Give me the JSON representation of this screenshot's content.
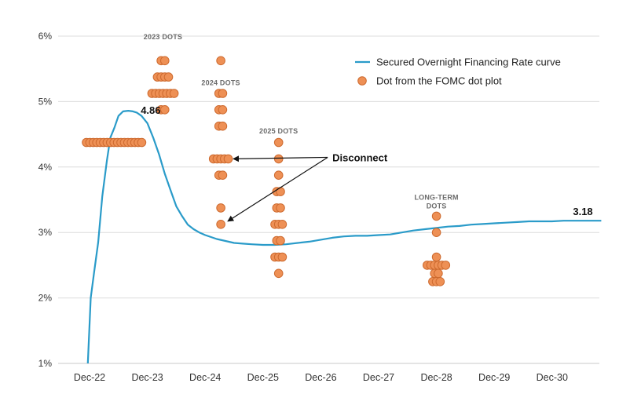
{
  "chart_data": {
    "type": "line",
    "title": "",
    "xlabel": "",
    "ylabel": "",
    "ylim": [
      1,
      6
    ],
    "y_ticks": [
      "1%",
      "2%",
      "3%",
      "4%",
      "5%",
      "6%"
    ],
    "x_ticks": [
      "Dec-22",
      "Dec-23",
      "Dec-24",
      "Dec-25",
      "Dec-26",
      "Dec-27",
      "Dec-28",
      "Dec-29",
      "Dec-30"
    ],
    "grid": "horizontal",
    "legend_position": "top-right",
    "legend": {
      "curve": "Secured Overnight Financing Rate curve",
      "dots": "Dot from the FOMC dot plot"
    },
    "colors": {
      "curve": "#2a9bc9",
      "dot_fill": "#ee9055",
      "dot_stroke": "#cd6a2f",
      "grid": "#dcdcdc"
    },
    "curve": {
      "name": "Secured Overnight Financing Rate curve",
      "x": [
        -0.03,
        0.02,
        0.08,
        0.15,
        0.22,
        0.3,
        0.36,
        0.43,
        0.5,
        0.58,
        0.67,
        0.75,
        0.82,
        0.9,
        1.0,
        1.1,
        1.2,
        1.3,
        1.4,
        1.5,
        1.6,
        1.7,
        1.8,
        1.9,
        2.0,
        2.1,
        2.2,
        2.35,
        2.5,
        2.65,
        2.8,
        3.0,
        3.2,
        3.4,
        3.6,
        3.8,
        4.0,
        4.2,
        4.4,
        4.6,
        4.8,
        5.0,
        5.2,
        5.4,
        5.6,
        5.8,
        6.0,
        6.2,
        6.4,
        6.6,
        6.8,
        7.0,
        7.2,
        7.4,
        7.6,
        7.8,
        8.0,
        8.2,
        8.4,
        8.6,
        8.85
      ],
      "y": [
        1.0,
        2.0,
        2.4,
        2.85,
        3.55,
        4.1,
        4.45,
        4.6,
        4.78,
        4.85,
        4.86,
        4.85,
        4.83,
        4.78,
        4.67,
        4.45,
        4.2,
        3.9,
        3.65,
        3.4,
        3.25,
        3.12,
        3.05,
        3.0,
        2.96,
        2.93,
        2.9,
        2.87,
        2.84,
        2.83,
        2.82,
        2.81,
        2.81,
        2.82,
        2.84,
        2.86,
        2.89,
        2.92,
        2.94,
        2.95,
        2.95,
        2.96,
        2.97,
        3.0,
        3.03,
        3.05,
        3.07,
        3.09,
        3.1,
        3.12,
        3.13,
        3.14,
        3.15,
        3.16,
        3.17,
        3.17,
        3.17,
        3.18,
        3.18,
        3.18,
        3.18
      ]
    },
    "annotations": {
      "peak": {
        "x": 0.75,
        "y": 4.86,
        "label": "4.86"
      },
      "end": {
        "x": 8.85,
        "y": 3.18,
        "label": "3.18"
      },
      "disconnect": {
        "label": "Disconnect",
        "text_x": 4.2,
        "text_y": 4.1
      }
    },
    "dot_groups": [
      {
        "label": "2023 DOTS",
        "x": 1.27,
        "label_y": 6.0,
        "rows": [
          {
            "y": 5.625,
            "count": 2
          },
          {
            "y": 5.375,
            "count": 4
          },
          {
            "y": 5.125,
            "count": 7
          },
          {
            "y": 4.875,
            "count": 2
          }
        ]
      },
      {
        "label": "2024 DOTS",
        "x": 2.27,
        "label_y": 5.3,
        "rows": [
          {
            "y": 5.625,
            "count": 1
          },
          {
            "y": 5.125,
            "count": 2
          },
          {
            "y": 4.875,
            "count": 2
          },
          {
            "y": 4.625,
            "count": 2
          },
          {
            "y": 4.125,
            "count": 5
          },
          {
            "y": 3.875,
            "count": 2
          },
          {
            "y": 3.375,
            "count": 1
          },
          {
            "y": 3.125,
            "count": 1
          }
        ]
      },
      {
        "label": "2025 DOTS",
        "x": 3.27,
        "label_y": 4.56,
        "rows": [
          {
            "y": 4.375,
            "count": 1
          },
          {
            "y": 4.125,
            "count": 1
          },
          {
            "y": 3.875,
            "count": 1
          },
          {
            "y": 3.625,
            "count": 2
          },
          {
            "y": 3.375,
            "count": 2
          },
          {
            "y": 3.125,
            "count": 3
          },
          {
            "y": 2.875,
            "count": 2
          },
          {
            "y": 2.625,
            "count": 3
          },
          {
            "y": 2.375,
            "count": 1
          }
        ]
      },
      {
        "label": "LONG-TERM DOTS",
        "label_lines": [
          "LONG-TERM",
          "DOTS"
        ],
        "x": 6.0,
        "label_y": 3.55,
        "rows": [
          {
            "y": 3.25,
            "count": 1
          },
          {
            "y": 3.0,
            "count": 1
          },
          {
            "y": 2.625,
            "count": 1
          },
          {
            "y": 2.5,
            "count": 6
          },
          {
            "y": 2.375,
            "count": 2
          },
          {
            "y": 2.25,
            "count": 3
          }
        ]
      }
    ],
    "q3": {
      "x": 0.8,
      "y": 4.375,
      "count": 17
    }
  }
}
